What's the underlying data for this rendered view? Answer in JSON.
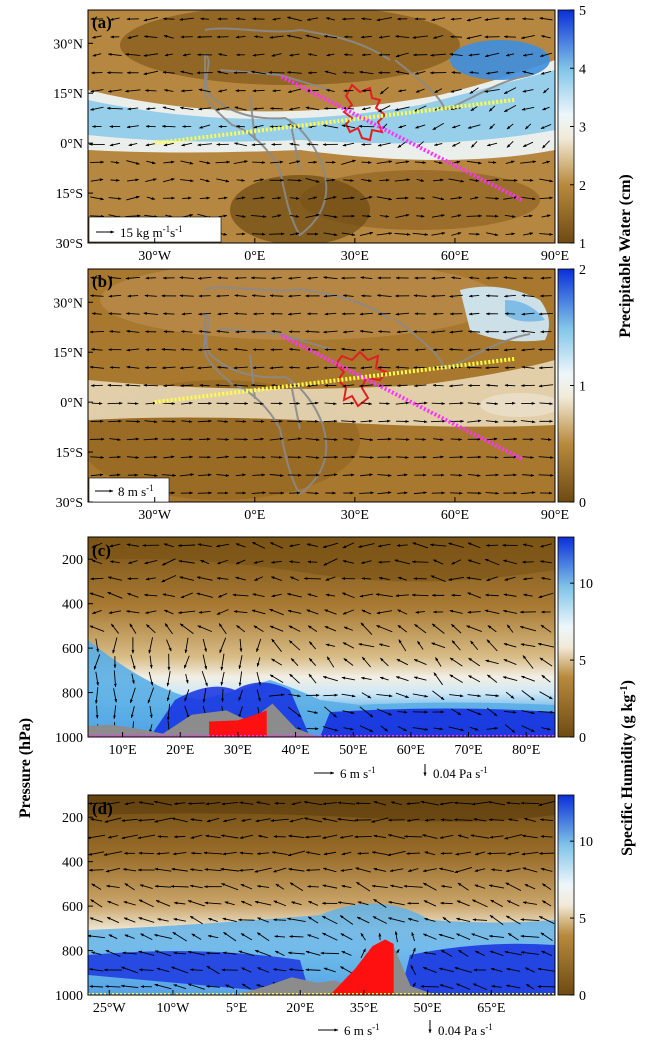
{
  "chart_data": [
    {
      "panel": "(a)",
      "type": "heatmap",
      "title": "",
      "xlabel": "",
      "ylabel": "",
      "xlim": [
        -50,
        90
      ],
      "ylim": [
        -30,
        40
      ],
      "xticks": [
        {
          "value": -30,
          "label": "30°W"
        },
        {
          "value": 0,
          "label": "0°E"
        },
        {
          "value": 30,
          "label": "30°E"
        },
        {
          "value": 60,
          "label": "60°E"
        },
        {
          "value": 90,
          "label": "90°E"
        }
      ],
      "yticks": [
        {
          "value": 30,
          "label": "30°N"
        },
        {
          "value": 15,
          "label": "15°N"
        },
        {
          "value": 0,
          "label": "0°N"
        },
        {
          "value": -15,
          "label": "15°S"
        },
        {
          "value": -30,
          "label": "30°S"
        }
      ],
      "colorbar": {
        "label": "Precipitable Water (cm)",
        "min": 1,
        "max": 5,
        "ticks": [
          {
            "value": 1,
            "label": "1"
          },
          {
            "value": 2,
            "label": "2"
          },
          {
            "value": 3,
            "label": "3"
          },
          {
            "value": 4,
            "label": "4"
          },
          {
            "value": 5,
            "label": "5"
          }
        ]
      },
      "vector_key": {
        "label": "15 kg m",
        "sup1": "-1",
        "mid": "s",
        "sup2": "-1"
      },
      "transects": [
        {
          "color": "#ff33ff",
          "from": [
            8,
            20
          ],
          "to": [
            80,
            -17
          ]
        },
        {
          "color": "#ffff44",
          "from": [
            -30,
            0
          ],
          "to": [
            78,
            13
          ]
        }
      ]
    },
    {
      "panel": "(b)",
      "type": "heatmap",
      "title": "",
      "xlabel": "",
      "ylabel": "",
      "xlim": [
        -50,
        90
      ],
      "ylim": [
        -30,
        40
      ],
      "xticks": [
        {
          "value": -30,
          "label": "30°W"
        },
        {
          "value": 0,
          "label": "0°E"
        },
        {
          "value": 30,
          "label": "30°E"
        },
        {
          "value": 60,
          "label": "60°E"
        },
        {
          "value": 90,
          "label": "90°E"
        }
      ],
      "yticks": [
        {
          "value": 30,
          "label": "30°N"
        },
        {
          "value": 15,
          "label": "15°N"
        },
        {
          "value": 0,
          "label": "0°N"
        },
        {
          "value": -15,
          "label": "15°S"
        },
        {
          "value": -30,
          "label": "30°S"
        }
      ],
      "colorbar": {
        "label": "Precipitable Water (cm)",
        "min": 0,
        "max": 2,
        "ticks": [
          {
            "value": 0,
            "label": "0"
          },
          {
            "value": 1,
            "label": "1"
          },
          {
            "value": 2,
            "label": "2"
          }
        ]
      },
      "vector_key": {
        "label": "8 m s",
        "sup1": "-1",
        "mid": "",
        "sup2": ""
      },
      "transects": [
        {
          "color": "#ff33ff",
          "from": [
            8,
            20
          ],
          "to": [
            80,
            -17
          ]
        },
        {
          "color": "#ffff44",
          "from": [
            -30,
            0
          ],
          "to": [
            78,
            13
          ]
        }
      ]
    },
    {
      "panel": "(c)",
      "type": "heatmap",
      "title": "",
      "xlabel": "",
      "ylabel": "Pressure (hPa)",
      "xlim": [
        4,
        85
      ],
      "ylim": [
        1000,
        100
      ],
      "xticks": [
        {
          "value": 10,
          "label": "10°E"
        },
        {
          "value": 20,
          "label": "20°E"
        },
        {
          "value": 30,
          "label": "30°E"
        },
        {
          "value": 40,
          "label": "40°E"
        },
        {
          "value": 50,
          "label": "50°E"
        },
        {
          "value": 60,
          "label": "60°E"
        },
        {
          "value": 70,
          "label": "70°E"
        },
        {
          "value": 80,
          "label": "80°E"
        }
      ],
      "yticks": [
        {
          "value": 200,
          "label": "200"
        },
        {
          "value": 400,
          "label": "400"
        },
        {
          "value": 600,
          "label": "600"
        },
        {
          "value": 800,
          "label": "800"
        },
        {
          "value": 1000,
          "label": "1000"
        }
      ],
      "colorbar": {
        "label": "Specific Humidity (g kg",
        "sup": "-1",
        "label_end": ")",
        "min": 0,
        "max": 13,
        "ticks": [
          {
            "value": 0,
            "label": "0"
          },
          {
            "value": 5,
            "label": "5"
          },
          {
            "value": 10,
            "label": "10"
          }
        ]
      },
      "vector_key": {
        "h_label": "6 m s",
        "h_sup": "-1",
        "v_label": "0.04 Pa s",
        "v_sup": "-1"
      },
      "terrain_gray": [
        [
          4,
          950
        ],
        [
          8,
          945
        ],
        [
          12,
          960
        ],
        [
          17,
          985
        ],
        [
          22,
          900
        ],
        [
          28,
          880
        ],
        [
          32,
          930
        ],
        [
          36,
          850
        ],
        [
          40,
          960
        ],
        [
          44,
          1000
        ]
      ],
      "terrain_red": [
        [
          25,
          1000
        ],
        [
          25,
          930
        ],
        [
          30,
          925
        ],
        [
          33,
          900
        ],
        [
          35,
          880
        ],
        [
          35,
          1000
        ]
      ]
    },
    {
      "panel": "(d)",
      "type": "heatmap",
      "title": "",
      "xlabel": "",
      "ylabel": "Pressure (hPa)",
      "xlim": [
        -30,
        80
      ],
      "ylim": [
        1000,
        100
      ],
      "xticks": [
        {
          "value": -25,
          "label": "25°W"
        },
        {
          "value": -10,
          "label": "10°W"
        },
        {
          "value": 5,
          "label": "5°E"
        },
        {
          "value": 20,
          "label": "20°E"
        },
        {
          "value": 35,
          "label": "35°E"
        },
        {
          "value": 50,
          "label": "50°E"
        },
        {
          "value": 65,
          "label": "65°E"
        }
      ],
      "yticks": [
        {
          "value": 200,
          "label": "200"
        },
        {
          "value": 400,
          "label": "400"
        },
        {
          "value": 600,
          "label": "600"
        },
        {
          "value": 800,
          "label": "800"
        },
        {
          "value": 1000,
          "label": "1000"
        }
      ],
      "colorbar": {
        "label": "Specific Humidity (g kg",
        "sup": "-1",
        "label_end": ")",
        "min": 0,
        "max": 13,
        "ticks": [
          {
            "value": 0,
            "label": "0"
          },
          {
            "value": 5,
            "label": "5"
          },
          {
            "value": 10,
            "label": "10"
          }
        ]
      },
      "vector_key": {
        "h_label": "6 m s",
        "h_sup": "-1",
        "v_label": "0.04 Pa s",
        "v_sup": "-1"
      },
      "terrain_gray": [
        [
          -30,
          1000
        ],
        [
          5,
          1000
        ],
        [
          12,
          960
        ],
        [
          18,
          920
        ],
        [
          24,
          945
        ],
        [
          28,
          935
        ],
        [
          32,
          960
        ],
        [
          38,
          820
        ],
        [
          42,
          780
        ],
        [
          46,
          960
        ],
        [
          52,
          1000
        ],
        [
          80,
          1000
        ]
      ],
      "terrain_red": [
        [
          27,
          1000
        ],
        [
          33,
          880
        ],
        [
          37,
          780
        ],
        [
          40,
          750
        ],
        [
          42,
          770
        ],
        [
          42,
          1000
        ]
      ]
    }
  ]
}
